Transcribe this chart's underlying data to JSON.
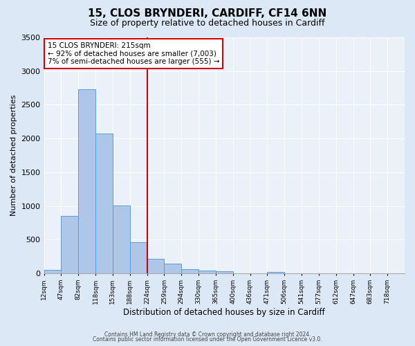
{
  "title": "15, CLOS BRYNDERI, CARDIFF, CF14 6NN",
  "subtitle": "Size of property relative to detached houses in Cardiff",
  "xlabel": "Distribution of detached houses by size in Cardiff",
  "ylabel": "Number of detached properties",
  "bin_labels": [
    "12sqm",
    "47sqm",
    "82sqm",
    "118sqm",
    "153sqm",
    "188sqm",
    "224sqm",
    "259sqm",
    "294sqm",
    "330sqm",
    "365sqm",
    "400sqm",
    "436sqm",
    "471sqm",
    "506sqm",
    "541sqm",
    "577sqm",
    "612sqm",
    "647sqm",
    "683sqm",
    "718sqm"
  ],
  "bar_heights": [
    55,
    850,
    2730,
    2070,
    1010,
    460,
    210,
    145,
    60,
    40,
    25,
    0,
    0,
    20,
    0,
    0,
    0,
    0,
    0,
    0,
    0
  ],
  "bar_color": "#aec6e8",
  "bar_edgecolor": "#5b9bd5",
  "property_line_x": 6,
  "property_line_label": "15 CLOS BRYNDERI: 215sqm",
  "annotation_line1": "← 92% of detached houses are smaller (7,003)",
  "annotation_line2": "7% of semi-detached houses are larger (555) →",
  "annotation_box_color": "#ffffff",
  "annotation_box_edgecolor": "#cc0000",
  "vline_color": "#cc0000",
  "ylim": [
    0,
    3500
  ],
  "yticks": [
    0,
    500,
    1000,
    1500,
    2000,
    2500,
    3000,
    3500
  ],
  "footer1": "Contains HM Land Registry data © Crown copyright and database right 2024.",
  "footer2": "Contains public sector information licensed under the Open Government Licence v3.0.",
  "background_color": "#dce8f5",
  "plot_background_color": "#eaf1f8"
}
